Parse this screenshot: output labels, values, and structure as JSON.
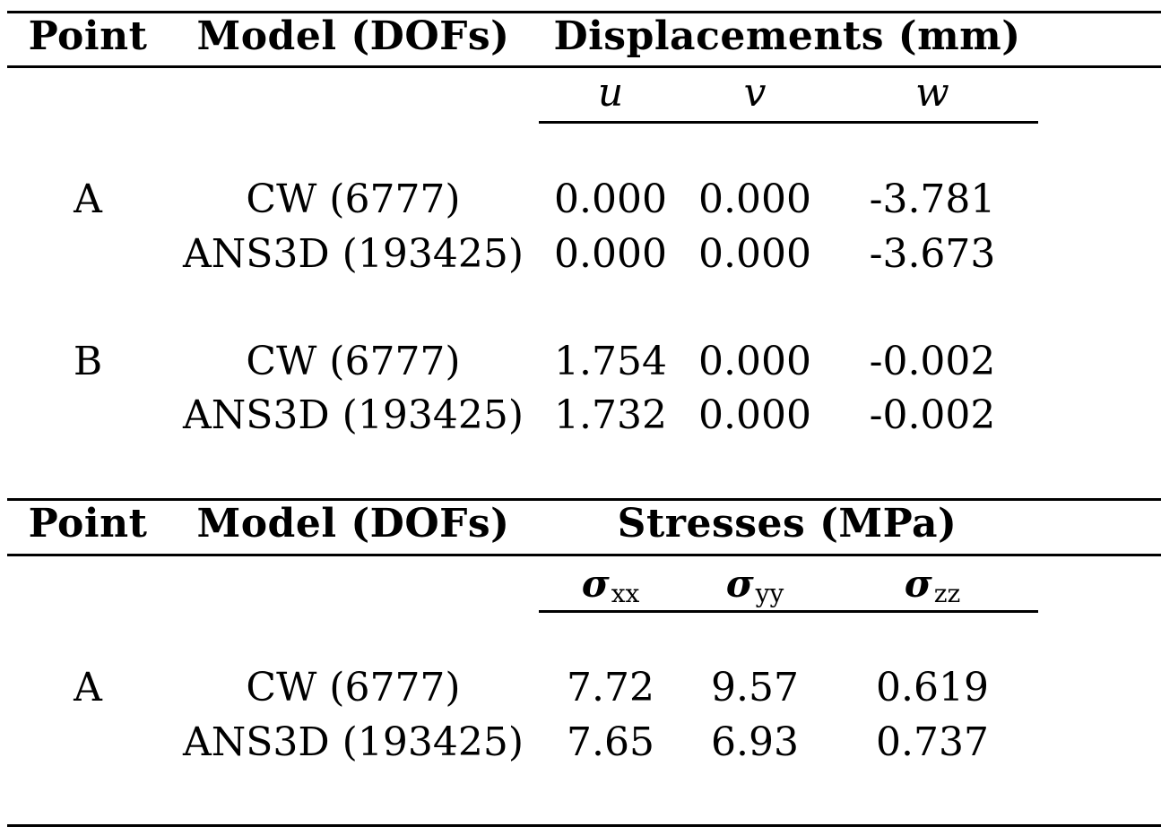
{
  "displacements": {
    "header": {
      "point": "Point",
      "model": "Model (DOFs)",
      "quantity": "Displacements (mm)"
    },
    "subheaders": [
      "u",
      "v",
      "w"
    ],
    "rows": [
      {
        "point": "A",
        "model": "CW (6777)",
        "u": "0.000",
        "v": "0.000",
        "w": "-3.781"
      },
      {
        "point": "",
        "model": "ANS3D (193425)",
        "u": "0.000",
        "v": "0.000",
        "w": "-3.673"
      },
      {
        "point": "B",
        "model": "CW (6777)",
        "u": "1.754",
        "v": "0.000",
        "w": "-0.002"
      },
      {
        "point": "",
        "model": "ANS3D (193425)",
        "u": "1.732",
        "v": "0.000",
        "w": "-0.002"
      }
    ]
  },
  "stresses": {
    "header": {
      "point": "Point",
      "model": "Model (DOFs)",
      "quantity": "Stresses (MPa)"
    },
    "subheaders": [
      {
        "symbol": "σ",
        "sub": "xx"
      },
      {
        "symbol": "σ",
        "sub": "yy"
      },
      {
        "symbol": "σ",
        "sub": "zz"
      }
    ],
    "rows": [
      {
        "point": "A",
        "model": "CW (6777)",
        "sxx": "7.72",
        "syy": "9.57",
        "szz": "0.619"
      },
      {
        "point": "",
        "model": "ANS3D (193425)",
        "sxx": "7.65",
        "syy": "6.93",
        "szz": "0.737"
      }
    ]
  }
}
